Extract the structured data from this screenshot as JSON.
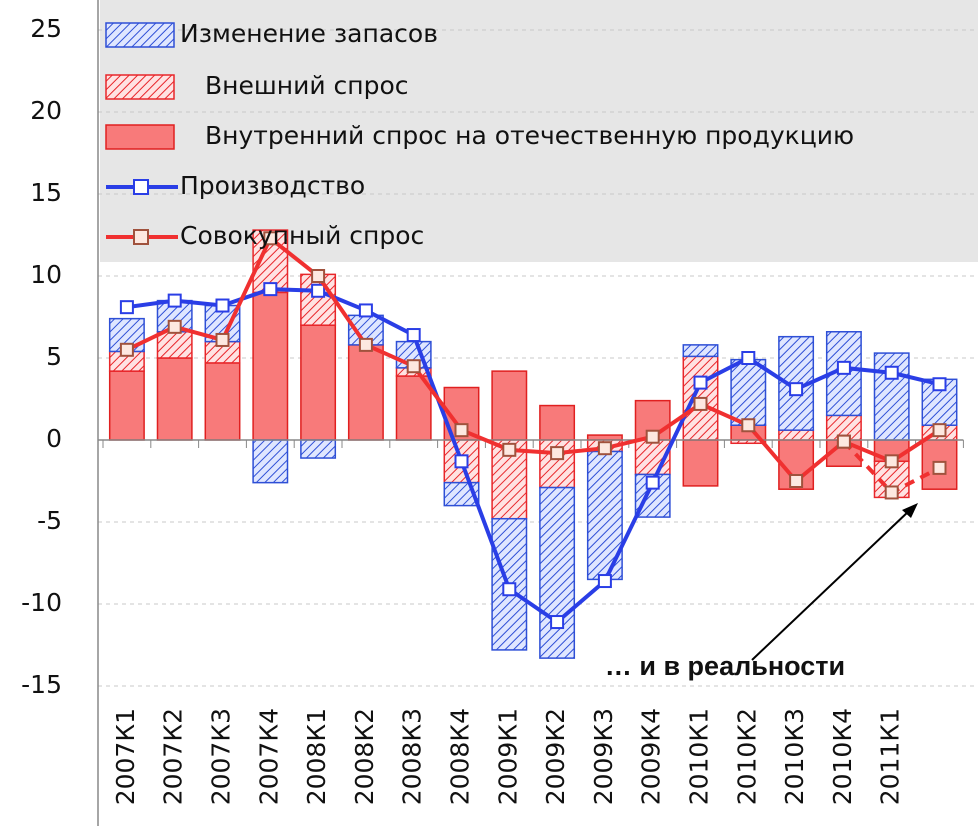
{
  "chart_data": {
    "type": "bar",
    "categories": [
      "2007К1",
      "2007К2",
      "2007К3",
      "2007К4",
      "2008К1",
      "2008К2",
      "2008К3",
      "2008К4",
      "2009К1",
      "2009К2",
      "2009К3",
      "2009К4",
      "2010К1",
      "2010К2",
      "2010К3",
      "2010К4",
      "2011К1",
      null
    ],
    "series": [
      {
        "name": "Изменение запасов",
        "kind": "bar",
        "style": "hatch",
        "color": "#2e4fd6",
        "values": [
          2.0,
          1.9,
          2.2,
          -2.6,
          -1.1,
          1.8,
          1.6,
          -1.4,
          -8.0,
          -10.4,
          -7.8,
          -2.6,
          0.7,
          4.0,
          5.7,
          5.1,
          5.3,
          2.8
        ]
      },
      {
        "name": "Внешний спрос",
        "kind": "bar",
        "style": "hatch",
        "color": "#e8262a",
        "values": [
          1.2,
          1.6,
          1.3,
          3.8,
          3.1,
          0.0,
          0.5,
          -2.6,
          -4.8,
          -2.9,
          -0.7,
          -2.1,
          5.1,
          -0.2,
          0.6,
          1.5,
          -2.2,
          0.9
        ]
      },
      {
        "name": "Внутренний спрос на отечественную продукцию",
        "kind": "bar",
        "style": "solid",
        "color": "#f87a7a",
        "values": [
          4.2,
          5.0,
          4.7,
          9.0,
          7.0,
          5.8,
          3.9,
          3.2,
          4.2,
          2.1,
          0.3,
          2.4,
          -2.8,
          0.9,
          -3.0,
          -1.6,
          -1.3,
          -3.0
        ]
      },
      {
        "name": "Производство",
        "kind": "line",
        "color": "#2a3ee6",
        "values": [
          8.1,
          8.5,
          8.2,
          9.2,
          9.1,
          7.9,
          6.4,
          -1.3,
          -9.1,
          -11.1,
          -8.6,
          -2.6,
          3.5,
          5.0,
          3.1,
          4.4,
          4.1,
          3.4
        ]
      },
      {
        "name": "Совокупный спрос",
        "kind": "line",
        "color": "#f03030",
        "values": [
          5.5,
          6.9,
          6.1,
          12.3,
          10.0,
          5.8,
          4.5,
          0.6,
          -0.6,
          -0.8,
          -0.5,
          0.2,
          2.2,
          0.9,
          -2.5,
          -0.1,
          -1.3,
          0.6
        ]
      },
      {
        "kind": "line",
        "style": "dashed",
        "color": "#f03030",
        "values": [
          null,
          null,
          null,
          null,
          null,
          null,
          null,
          null,
          null,
          null,
          null,
          null,
          null,
          null,
          null,
          -0.1,
          -3.2,
          -1.7
        ]
      }
    ],
    "ylim": [
      -15,
      25
    ],
    "yticks": [
      -15,
      -10,
      -5,
      0,
      5,
      10,
      15,
      20,
      25
    ],
    "grid": true,
    "annotation": "… и в реальности"
  }
}
